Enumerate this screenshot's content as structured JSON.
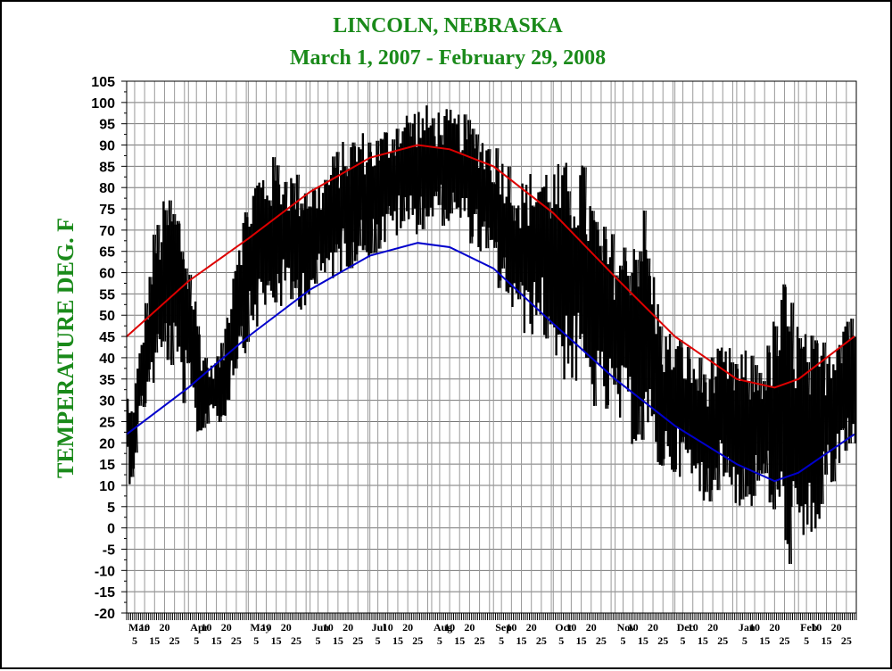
{
  "chart_data": {
    "type": "line",
    "title": "LINCOLN, NEBRASKA",
    "subtitle": "March 1, 2007 - February 29,  2008",
    "ylabel": "TEMPERATURE DEG. F",
    "xlabel": "",
    "ylim": [
      -20,
      105
    ],
    "yticks": [
      -20,
      -15,
      -10,
      -5,
      0,
      5,
      10,
      15,
      20,
      25,
      30,
      35,
      40,
      45,
      50,
      55,
      60,
      65,
      70,
      75,
      80,
      85,
      90,
      95,
      100,
      105
    ],
    "xlim": [
      "2007-03-01",
      "2008-02-29"
    ],
    "grid": true,
    "month_labels": [
      {
        "label": "Mar",
        "date": "2007-03-01"
      },
      {
        "label": "Apr",
        "date": "2007-04-01"
      },
      {
        "label": "May",
        "date": "2007-05-01"
      },
      {
        "label": "Jun",
        "date": "2007-06-01"
      },
      {
        "label": "Jul",
        "date": "2007-07-01"
      },
      {
        "label": "Aug",
        "date": "2007-08-01"
      },
      {
        "label": "Sep",
        "date": "2007-09-01"
      },
      {
        "label": "Oct",
        "date": "2007-10-01"
      },
      {
        "label": "Nov",
        "date": "2007-11-01"
      },
      {
        "label": "Dec",
        "date": "2007-12-01"
      },
      {
        "label": "Jan",
        "date": "2008-01-01"
      },
      {
        "label": "Feb",
        "date": "2008-02-01"
      }
    ],
    "day_tick_labels_top": [
      "10",
      "20"
    ],
    "day_tick_labels_bottom": [
      "5",
      "15",
      "25"
    ],
    "series": [
      {
        "color": "#dd0000",
        "x": [
          "2007-03-01",
          "2007-04-01",
          "2007-05-01",
          "2007-06-01",
          "2007-07-01",
          "2007-07-25",
          "2007-08-10",
          "2007-09-01",
          "2007-10-01",
          "2007-11-01",
          "2007-12-01",
          "2008-01-01",
          "2008-01-20",
          "2008-02-01",
          "2008-02-29"
        ],
        "y": [
          45,
          58,
          68,
          79,
          87,
          90,
          89,
          85,
          74,
          59,
          45,
          35,
          33,
          35,
          45
        ]
      },
      {
        "color": "#0000cc",
        "x": [
          "2007-03-01",
          "2007-04-01",
          "2007-05-01",
          "2007-06-01",
          "2007-07-01",
          "2007-07-25",
          "2007-08-10",
          "2007-09-01",
          "2007-10-01",
          "2007-11-01",
          "2007-12-01",
          "2008-01-01",
          "2008-01-20",
          "2008-02-01",
          "2008-02-29"
        ],
        "y": [
          22,
          33,
          45,
          56,
          64,
          67,
          66,
          61,
          48,
          35,
          24,
          15,
          11,
          13,
          22
        ]
      },
      {
        "type": "range",
        "color": "#000000",
        "x": [
          "2007-03-01",
          "2007-03-03",
          "2007-03-08",
          "2007-03-15",
          "2007-03-22",
          "2007-03-28",
          "2007-04-03",
          "2007-04-08",
          "2007-04-12",
          "2007-04-18",
          "2007-04-25",
          "2007-05-05",
          "2007-05-15",
          "2007-05-25",
          "2007-06-05",
          "2007-06-15",
          "2007-06-25",
          "2007-07-05",
          "2007-07-15",
          "2007-07-25",
          "2007-08-05",
          "2007-08-15",
          "2007-08-25",
          "2007-09-05",
          "2007-09-15",
          "2007-09-25",
          "2007-10-05",
          "2007-10-15",
          "2007-10-25",
          "2007-11-05",
          "2007-11-15",
          "2007-11-25",
          "2007-12-05",
          "2007-12-15",
          "2007-12-25",
          "2008-01-05",
          "2008-01-15",
          "2008-01-25",
          "2008-02-05",
          "2008-02-15",
          "2008-02-25"
        ],
        "high": [
          34,
          28,
          44,
          72,
          80,
          76,
          60,
          45,
          38,
          44,
          70,
          85,
          88,
          84,
          82,
          90,
          94,
          93,
          98,
          100,
          99,
          98,
          95,
          90,
          82,
          87,
          86,
          88,
          72,
          68,
          78,
          48,
          45,
          40,
          43,
          42,
          41,
          60,
          46,
          45,
          55
        ],
        "low": [
          17,
          8,
          25,
          33,
          38,
          30,
          24,
          18,
          28,
          22,
          37,
          46,
          51,
          50,
          55,
          59,
          62,
          64,
          68,
          69,
          71,
          70,
          64,
          54,
          45,
          45,
          35,
          30,
          26,
          22,
          16,
          12,
          12,
          4,
          10,
          2,
          8,
          -9,
          -10,
          6,
          14
        ]
      }
    ]
  }
}
